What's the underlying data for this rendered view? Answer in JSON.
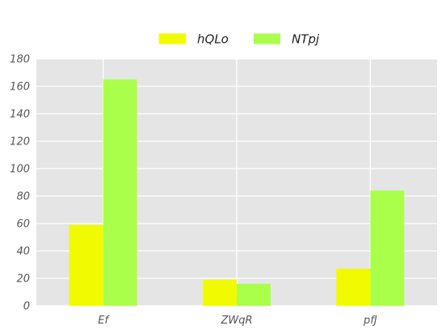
{
  "chart_data": {
    "type": "bar",
    "categories": [
      "Ef",
      "ZWqR",
      "pfJ"
    ],
    "series": [
      {
        "name": "hQLo",
        "values": [
          59,
          19,
          27
        ],
        "color": "#f2fa00"
      },
      {
        "name": "NTpj",
        "values": [
          165,
          16,
          84
        ],
        "color": "#aaff4a"
      }
    ],
    "ylim": [
      0,
      180
    ],
    "yticks": [
      0,
      20,
      40,
      60,
      80,
      100,
      120,
      140,
      160,
      180
    ],
    "grid": true,
    "legend": "top-center",
    "background": "#e5e5e5"
  }
}
